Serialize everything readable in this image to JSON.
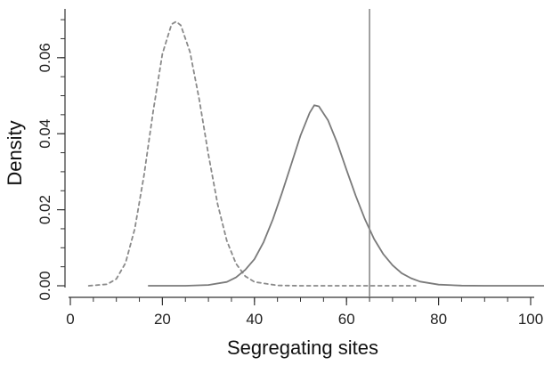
{
  "chart_data": {
    "type": "line",
    "title": "",
    "xlabel": "Segregating sites",
    "ylabel": "Density",
    "xlim": [
      0,
      105
    ],
    "ylim": [
      0,
      0.07
    ],
    "xticks": [
      0,
      20,
      40,
      60,
      80,
      100
    ],
    "xtick_labels": [
      "0",
      "20",
      "40",
      "60",
      "80",
      "100"
    ],
    "yticks": [
      0,
      0.02,
      0.04,
      0.06
    ],
    "ytick_labels": [
      "0.00",
      "0.02",
      "0.04",
      "0.06"
    ],
    "grid": false,
    "series": [
      {
        "style": "dashed",
        "color": "#8a8a8a",
        "x": [
          4,
          8,
          10,
          12,
          14,
          16,
          18,
          20,
          22,
          23,
          24,
          26,
          28,
          30,
          32,
          34,
          36,
          38,
          40,
          45,
          50,
          55,
          60,
          65,
          70,
          75
        ],
        "y": [
          0,
          0.0004,
          0.0018,
          0.006,
          0.015,
          0.029,
          0.046,
          0.061,
          0.0688,
          0.0695,
          0.0685,
          0.0615,
          0.049,
          0.0345,
          0.0215,
          0.0118,
          0.0058,
          0.0025,
          0.001,
          0.0001,
          0,
          0,
          0,
          0,
          0,
          0
        ]
      },
      {
        "style": "solid",
        "color": "#7a7a7a",
        "x": [
          17,
          25,
          30,
          34,
          36,
          38,
          40,
          42,
          44,
          46,
          48,
          50,
          52,
          53,
          54,
          56,
          58,
          60,
          62,
          64,
          66,
          68,
          70,
          72,
          74,
          76,
          80,
          85,
          90,
          95,
          104
        ],
        "y": [
          0,
          0,
          0.0002,
          0.001,
          0.0022,
          0.0042,
          0.007,
          0.0115,
          0.0175,
          0.0245,
          0.032,
          0.0395,
          0.0455,
          0.0475,
          0.0472,
          0.0435,
          0.0375,
          0.0305,
          0.0237,
          0.0175,
          0.0123,
          0.0083,
          0.0054,
          0.0033,
          0.002,
          0.0011,
          0.0003,
          5e-05,
          0,
          0,
          0
        ]
      }
    ],
    "vline": {
      "x": 65,
      "color": "#8a8a8a"
    }
  }
}
